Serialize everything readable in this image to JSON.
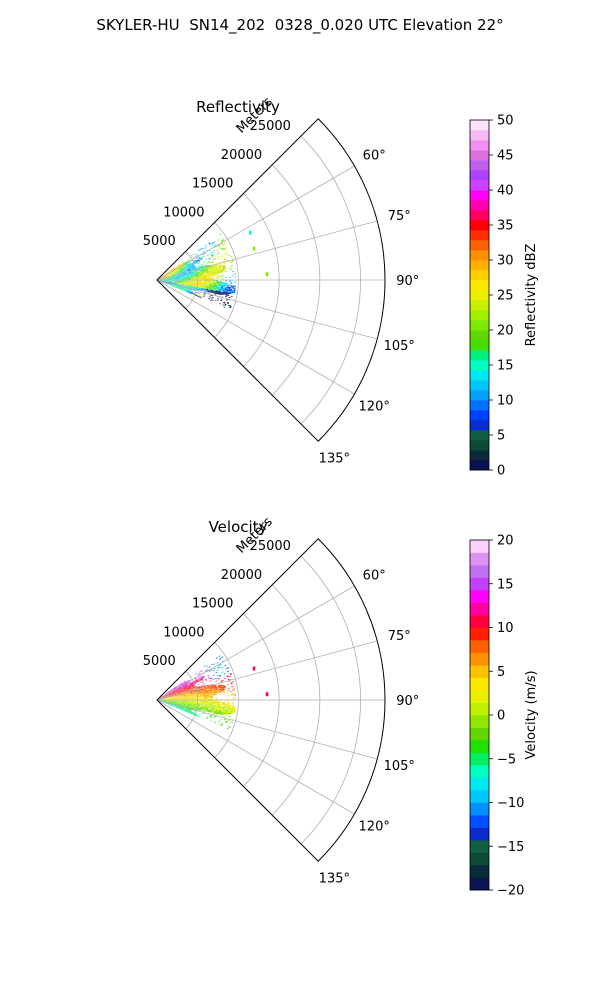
{
  "figure": {
    "title": "SKYLER-HU  SN14_202  0328_0.020 UTC Elevation 22°"
  },
  "chart_data": [
    {
      "type": "polar-sector",
      "title": "Reflectivity",
      "radial_label": "Meters",
      "r_max": 28000,
      "theta_range": [
        45,
        135
      ],
      "r_ticks": [
        5000,
        10000,
        15000,
        20000,
        25000
      ],
      "theta_ticks": [
        60,
        75,
        90,
        105,
        120,
        135
      ],
      "theta_tick_labels": [
        "60°",
        "75°",
        "90°",
        "105°",
        "120°",
        "135°"
      ],
      "grid": true,
      "colorbar": {
        "label": "Reflectivity dBZ",
        "min": 0,
        "max": 50,
        "ticks": [
          0,
          5,
          10,
          15,
          20,
          25,
          30,
          35,
          40,
          45,
          50
        ],
        "colors": [
          "#0a1450",
          "#0a2a3a",
          "#0d4a35",
          "#115e40",
          "#0a2bd0",
          "#0040ff",
          "#0070ff",
          "#00a0ff",
          "#00c8ff",
          "#00e8f0",
          "#00ffc0",
          "#00f080",
          "#40e000",
          "#60d800",
          "#80e800",
          "#a0f000",
          "#c8f000",
          "#e8f000",
          "#ffe800",
          "#ffd000",
          "#ffb000",
          "#ff9000",
          "#ff6000",
          "#ff3000",
          "#ff0000",
          "#ff0060",
          "#ff00b0",
          "#ff00ff",
          "#d040ff",
          "#b040ff",
          "#c060f0",
          "#e070e0",
          "#f090f0",
          "#f8b8f8",
          "#fce0fc"
        ]
      },
      "echo_region": {
        "r_range": [
          0,
          9500
        ],
        "theta_range": [
          54,
          112
        ],
        "dominant_value_range": [
          15,
          35
        ]
      },
      "isolated_echoes": [
        {
          "r": 12500,
          "theta": 72,
          "value": 20
        },
        {
          "r": 13500,
          "theta": 87,
          "value": 20
        },
        {
          "r": 12800,
          "theta": 63,
          "value": 15
        }
      ]
    },
    {
      "type": "polar-sector",
      "title": "Velocity",
      "radial_label": "Meters",
      "r_max": 28000,
      "theta_range": [
        45,
        135
      ],
      "r_ticks": [
        5000,
        10000,
        15000,
        20000,
        25000
      ],
      "theta_ticks": [
        60,
        75,
        90,
        105,
        120,
        135
      ],
      "theta_tick_labels": [
        "60°",
        "75°",
        "90°",
        "105°",
        "120°",
        "135°"
      ],
      "grid": true,
      "colorbar": {
        "label": "Velocity (m/s)",
        "min": -20,
        "max": 20,
        "ticks": [
          -20,
          -15,
          -10,
          -5,
          0,
          5,
          10,
          15,
          20
        ],
        "colors": [
          "#0a1450",
          "#0a2a3a",
          "#0d4a35",
          "#115e40",
          "#0a2bd0",
          "#0050ff",
          "#0090ff",
          "#00c8ff",
          "#00e8f0",
          "#00ffc0",
          "#00f060",
          "#20e000",
          "#60d800",
          "#90e800",
          "#c0f000",
          "#e8f000",
          "#ffe800",
          "#ffc000",
          "#ff9000",
          "#ff6000",
          "#ff2000",
          "#ff0040",
          "#ff00a0",
          "#ff00ff",
          "#c040ff",
          "#c070f0",
          "#e090f0",
          "#fcd0fc"
        ]
      },
      "echo_region": {
        "r_range": [
          0,
          9500
        ],
        "theta_range": [
          54,
          112
        ],
        "dominant_value_range": [
          -10,
          15
        ]
      },
      "isolated_echoes": [
        {
          "r": 12500,
          "theta": 72,
          "value": 10
        },
        {
          "r": 13500,
          "theta": 87,
          "value": 10
        }
      ]
    }
  ]
}
